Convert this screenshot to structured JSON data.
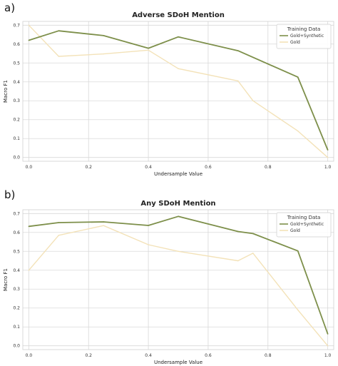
{
  "chart_data": [
    {
      "type": "line",
      "panel": "a)",
      "title": "Adverse SDoH Mention",
      "xlabel": "Undersample Value",
      "ylabel": "Macro F1",
      "xlim": [
        -0.02,
        1.02
      ],
      "ylim": [
        -0.02,
        0.72
      ],
      "xticks": [
        "0.0",
        "0.2",
        "0.4",
        "0.6",
        "0.8",
        "1.0"
      ],
      "yticks": [
        "0.0",
        "0.1",
        "0.2",
        "0.3",
        "0.4",
        "0.5",
        "0.6",
        "0.7"
      ],
      "grid": true,
      "legend": {
        "title": "Training Data",
        "placement": "top-right"
      },
      "series": [
        {
          "name": "Gold+Synthetic",
          "color": "#7d8f4a",
          "x": [
            0.0,
            0.1,
            0.25,
            0.4,
            0.5,
            0.7,
            0.9,
            1.0
          ],
          "y": [
            0.62,
            0.67,
            0.645,
            0.578,
            0.638,
            0.565,
            0.425,
            0.04
          ]
        },
        {
          "name": "Gold",
          "color": "#f3e2b8",
          "x": [
            0.0,
            0.1,
            0.25,
            0.4,
            0.5,
            0.7,
            0.75,
            0.9,
            1.0
          ],
          "y": [
            0.7,
            0.535,
            0.548,
            0.568,
            0.47,
            0.405,
            0.3,
            0.14,
            0.0
          ]
        }
      ]
    },
    {
      "type": "line",
      "panel": "b)",
      "title": "Any SDoH Mention",
      "xlabel": "Undersample Value",
      "ylabel": "Macro F1",
      "xlim": [
        -0.02,
        1.02
      ],
      "ylim": [
        -0.02,
        0.72
      ],
      "xticks": [
        "0.0",
        "0.2",
        "0.4",
        "0.6",
        "0.8",
        "1.0"
      ],
      "yticks": [
        "0.0",
        "0.1",
        "0.2",
        "0.3",
        "0.4",
        "0.5",
        "0.6",
        "0.7"
      ],
      "grid": true,
      "legend": {
        "title": "Training Data",
        "placement": "top-right"
      },
      "series": [
        {
          "name": "Gold+Synthetic",
          "color": "#7d8f4a",
          "x": [
            0.0,
            0.1,
            0.25,
            0.4,
            0.5,
            0.7,
            0.75,
            0.9,
            1.0
          ],
          "y": [
            0.632,
            0.652,
            0.656,
            0.637,
            0.685,
            0.605,
            0.594,
            0.502,
            0.063
          ]
        },
        {
          "name": "Gold",
          "color": "#f3e2b8",
          "x": [
            0.0,
            0.1,
            0.25,
            0.4,
            0.5,
            0.7,
            0.75,
            0.9,
            1.0
          ],
          "y": [
            0.4,
            0.585,
            0.636,
            0.535,
            0.5,
            0.45,
            0.49,
            0.19,
            0.0
          ]
        }
      ]
    }
  ]
}
